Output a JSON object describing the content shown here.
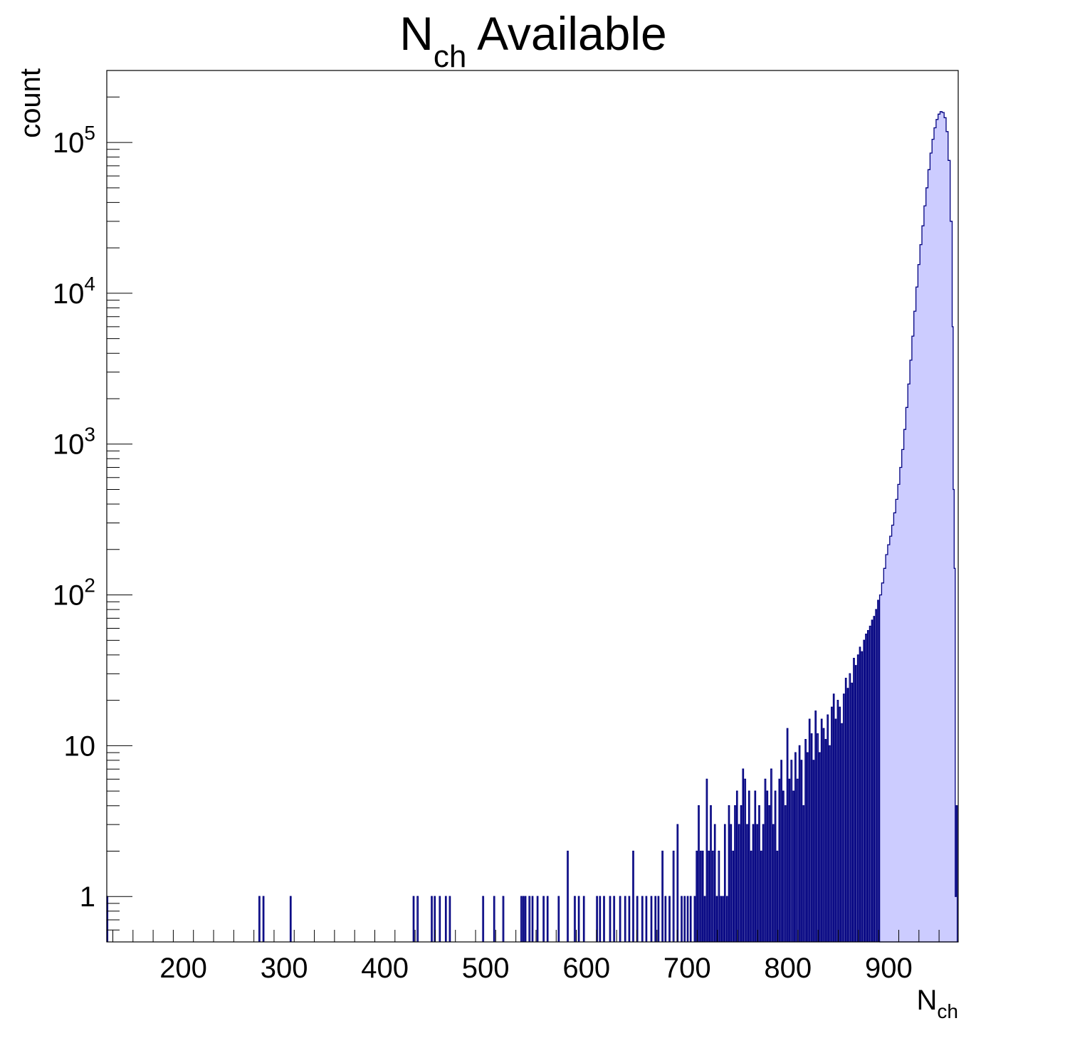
{
  "chart_data": {
    "type": "histogram",
    "title": {
      "main": "N",
      "sub": "ch",
      "rest": " Available"
    },
    "xlabel": {
      "main": "N",
      "sub": "ch"
    },
    "ylabel": "count",
    "xlim": [
      124,
      969
    ],
    "ylim": [
      0.5,
      300000
    ],
    "yscale": "log",
    "grid": false,
    "legend": "none",
    "fill_color": "#ccccff",
    "line_color": "#000080",
    "x_ticks": [
      {
        "value": 200,
        "label": "200"
      },
      {
        "value": 300,
        "label": "300"
      },
      {
        "value": 400,
        "label": "400"
      },
      {
        "value": 500,
        "label": "500"
      },
      {
        "value": 600,
        "label": "600"
      },
      {
        "value": 700,
        "label": "700"
      },
      {
        "value": 800,
        "label": "800"
      },
      {
        "value": 900,
        "label": "900"
      }
    ],
    "y_ticks": [
      {
        "value": 1,
        "base": "1",
        "exp": ""
      },
      {
        "value": 10,
        "base": "10",
        "exp": ""
      },
      {
        "value": 100,
        "base": "10",
        "exp": "2"
      },
      {
        "value": 1000,
        "base": "10",
        "exp": "3"
      },
      {
        "value": 10000,
        "base": "10",
        "exp": "4"
      },
      {
        "value": 100000,
        "base": "10",
        "exp": "5"
      }
    ],
    "bin_width": 1,
    "peak": {
      "x": 952,
      "y": 160000
    },
    "sparse_bins": [
      [
        124,
        1
      ],
      [
        275,
        1
      ],
      [
        279,
        1
      ],
      [
        306,
        1
      ],
      [
        428,
        1
      ],
      [
        432,
        1
      ],
      [
        446,
        1
      ],
      [
        449,
        1
      ],
      [
        454,
        1
      ],
      [
        460,
        1
      ],
      [
        464,
        1
      ],
      [
        497,
        1
      ],
      [
        508,
        1
      ],
      [
        517,
        1
      ],
      [
        535,
        1
      ],
      [
        537,
        1
      ],
      [
        539,
        1
      ],
      [
        543,
        1
      ],
      [
        546,
        1
      ],
      [
        551,
        1
      ],
      [
        557,
        1
      ],
      [
        561,
        1
      ],
      [
        572,
        1
      ],
      [
        581,
        2
      ],
      [
        588,
        1
      ],
      [
        592,
        1
      ],
      [
        597,
        1
      ],
      [
        610,
        1
      ],
      [
        613,
        1
      ],
      [
        617,
        1
      ],
      [
        623,
        1
      ],
      [
        627,
        1
      ],
      [
        633,
        1
      ],
      [
        638,
        1
      ],
      [
        642,
        1
      ],
      [
        646,
        2
      ],
      [
        650,
        1
      ],
      [
        655,
        1
      ],
      [
        659,
        1
      ],
      [
        664,
        1
      ],
      [
        668,
        1
      ],
      [
        671,
        1
      ],
      [
        675,
        2
      ],
      [
        678,
        1
      ],
      [
        682,
        1
      ],
      [
        686,
        2
      ],
      [
        690,
        3
      ],
      [
        694,
        1
      ],
      [
        697,
        1
      ],
      [
        700,
        1
      ],
      [
        703,
        1
      ],
      [
        707,
        1
      ],
      [
        709,
        2
      ],
      [
        711,
        4
      ],
      [
        713,
        2
      ],
      [
        715,
        2
      ],
      [
        717,
        1
      ],
      [
        719,
        6
      ],
      [
        721,
        2
      ],
      [
        723,
        4
      ],
      [
        725,
        2
      ],
      [
        727,
        3
      ],
      [
        729,
        1
      ],
      [
        731,
        2
      ],
      [
        733,
        1
      ],
      [
        735,
        1
      ],
      [
        737,
        3
      ],
      [
        739,
        1
      ],
      [
        741,
        4
      ],
      [
        743,
        3
      ],
      [
        745,
        2
      ],
      [
        747,
        4
      ],
      [
        749,
        5
      ],
      [
        751,
        3
      ],
      [
        753,
        4
      ],
      [
        755,
        7
      ],
      [
        757,
        6
      ],
      [
        759,
        3
      ],
      [
        761,
        5
      ],
      [
        763,
        2
      ],
      [
        765,
        3
      ],
      [
        767,
        5
      ],
      [
        769,
        3
      ],
      [
        771,
        4
      ],
      [
        773,
        2
      ],
      [
        775,
        3
      ],
      [
        777,
        6
      ],
      [
        779,
        5
      ],
      [
        781,
        4
      ],
      [
        783,
        7
      ],
      [
        785,
        3
      ],
      [
        787,
        5
      ],
      [
        789,
        2
      ],
      [
        791,
        6
      ],
      [
        793,
        8
      ],
      [
        795,
        5
      ],
      [
        797,
        4
      ],
      [
        799,
        13
      ],
      [
        801,
        6
      ],
      [
        803,
        8
      ],
      [
        805,
        5
      ],
      [
        807,
        9
      ],
      [
        809,
        6
      ],
      [
        811,
        10
      ],
      [
        813,
        8
      ],
      [
        815,
        4
      ],
      [
        817,
        11
      ],
      [
        819,
        9
      ],
      [
        821,
        15
      ],
      [
        823,
        12
      ],
      [
        825,
        8
      ],
      [
        827,
        17
      ],
      [
        829,
        12
      ],
      [
        831,
        9
      ],
      [
        833,
        15
      ],
      [
        835,
        13
      ],
      [
        837,
        11
      ],
      [
        839,
        16
      ],
      [
        841,
        10
      ],
      [
        843,
        18
      ],
      [
        845,
        22
      ],
      [
        847,
        15
      ],
      [
        849,
        20
      ],
      [
        851,
        18
      ],
      [
        853,
        14
      ],
      [
        855,
        22
      ],
      [
        857,
        28
      ],
      [
        859,
        24
      ],
      [
        861,
        30
      ],
      [
        863,
        26
      ],
      [
        865,
        38
      ],
      [
        867,
        34
      ],
      [
        869,
        40
      ],
      [
        871,
        45
      ],
      [
        873,
        42
      ],
      [
        875,
        50
      ],
      [
        877,
        55
      ],
      [
        879,
        58
      ],
      [
        881,
        62
      ],
      [
        883,
        68
      ],
      [
        885,
        72
      ],
      [
        887,
        80
      ],
      [
        889,
        92
      ],
      [
        891,
        100
      ]
    ],
    "dense_bins": [
      [
        891,
        100
      ],
      [
        893,
        120
      ],
      [
        895,
        150
      ],
      [
        897,
        185
      ],
      [
        899,
        215
      ],
      [
        901,
        245
      ],
      [
        903,
        290
      ],
      [
        905,
        350
      ],
      [
        907,
        430
      ],
      [
        909,
        540
      ],
      [
        911,
        700
      ],
      [
        913,
        920
      ],
      [
        915,
        1250
      ],
      [
        917,
        1750
      ],
      [
        919,
        2500
      ],
      [
        921,
        3600
      ],
      [
        923,
        5200
      ],
      [
        925,
        7600
      ],
      [
        927,
        11000
      ],
      [
        929,
        15500
      ],
      [
        931,
        21000
      ],
      [
        933,
        28000
      ],
      [
        935,
        38000
      ],
      [
        937,
        50000
      ],
      [
        939,
        66000
      ],
      [
        941,
        85000
      ],
      [
        943,
        105000
      ],
      [
        945,
        125000
      ],
      [
        947,
        142000
      ],
      [
        949,
        154000
      ],
      [
        951,
        160000
      ],
      [
        953,
        158000
      ],
      [
        955,
        146000
      ],
      [
        957,
        118000
      ],
      [
        959,
        76000
      ],
      [
        961,
        30000
      ],
      [
        963,
        6000
      ],
      [
        964,
        500
      ],
      [
        965,
        150
      ],
      [
        966,
        1
      ],
      [
        967,
        4
      ],
      [
        968,
        0.3
      ]
    ]
  }
}
